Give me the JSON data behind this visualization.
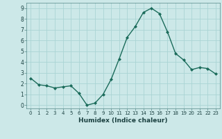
{
  "x": [
    0,
    1,
    2,
    3,
    4,
    5,
    6,
    7,
    8,
    9,
    10,
    11,
    12,
    13,
    14,
    15,
    16,
    17,
    18,
    19,
    20,
    21,
    22,
    23
  ],
  "y": [
    2.5,
    1.9,
    1.8,
    1.6,
    1.7,
    1.8,
    1.1,
    0.0,
    0.2,
    1.0,
    2.4,
    4.3,
    6.3,
    7.3,
    8.6,
    9.0,
    8.5,
    6.8,
    4.8,
    4.2,
    3.3,
    3.5,
    3.4,
    2.9
  ],
  "xlabel": "Humidex (Indice chaleur)",
  "ylim": [
    -0.3,
    9.5
  ],
  "xlim": [
    -0.5,
    23.5
  ],
  "yticks": [
    0,
    1,
    2,
    3,
    4,
    5,
    6,
    7,
    8,
    9
  ],
  "xticks": [
    0,
    1,
    2,
    3,
    4,
    5,
    6,
    7,
    8,
    9,
    10,
    11,
    12,
    13,
    14,
    15,
    16,
    17,
    18,
    19,
    20,
    21,
    22,
    23
  ],
  "line_color": "#1a6b5a",
  "marker_color": "#1a6b5a",
  "bg_color": "#cce8e8",
  "grid_color": "#aad4d4",
  "axis_bg": "#cce8e8",
  "tick_color": "#1a4040",
  "label_color": "#1a4040"
}
